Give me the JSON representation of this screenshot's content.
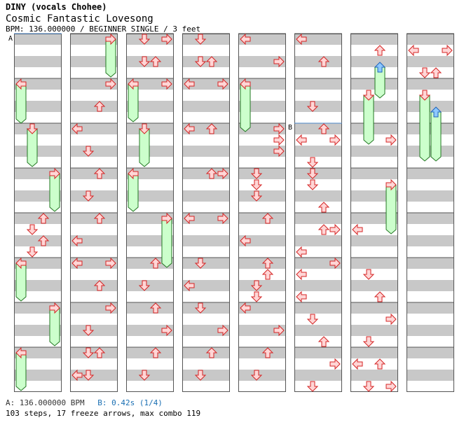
{
  "song": {
    "artist": "DINY (vocals Chohee)",
    "title": "Cosmic Fantastic Lovesong",
    "meta": "BPM: 136.000000 / BEGINNER SINGLE / 3 feet"
  },
  "markers": {
    "a_label": "A",
    "b_label": "B"
  },
  "footer": {
    "bpm_a": "A: 136.000000 BPM",
    "bpm_b": "B: 0.42s (1/4)",
    "stats": "103 steps, 17 freeze arrows, max combo 119"
  },
  "colors": {
    "stripe": "#c8c8c8",
    "border": "#555555",
    "arrow_fill": "#ffd6d6",
    "arrow_stroke": "#d42424",
    "freeze_fill": "#ccffcc",
    "freeze_stroke": "#227722",
    "blue_arrow_fill": "#8ec8ff",
    "blue_arrow_stroke": "#1f63b8",
    "marker_line": "#4a86c8"
  },
  "chart_data": {
    "type": "stepchart",
    "columns": 8,
    "measures_per_column": 8,
    "lanes": [
      "left",
      "down",
      "up",
      "right"
    ],
    "notes": [
      [
        1,
        1,
        3
      ],
      [
        1,
        1,
        10
      ],
      [
        1,
        1,
        12
      ],
      [
        1,
        1,
        19
      ],
      [
        1,
        1,
        21
      ],
      [
        1,
        1,
        29
      ],
      [
        2,
        0,
        3
      ],
      [
        2,
        1,
        3
      ],
      [
        2,
        2,
        6
      ],
      [
        2,
        3,
        8
      ],
      [
        2,
        0,
        16
      ],
      [
        2,
        3,
        17
      ],
      [
        2,
        1,
        23
      ],
      [
        2,
        3,
        26
      ],
      [
        2,
        0,
        29
      ],
      [
        2,
        1,
        30
      ],
      [
        3,
        2,
        0
      ],
      [
        3,
        0,
        6
      ],
      [
        3,
        1,
        9
      ],
      [
        3,
        2,
        14
      ],
      [
        3,
        1,
        17
      ],
      [
        3,
        2,
        20
      ],
      [
        3,
        0,
        23
      ],
      [
        3,
        3,
        26
      ],
      [
        3,
        0,
        30
      ],
      [
        3,
        1,
        31
      ],
      [
        4,
        0,
        2
      ],
      [
        4,
        1,
        6
      ],
      [
        4,
        3,
        13
      ],
      [
        4,
        1,
        18
      ],
      [
        4,
        0,
        20
      ],
      [
        4,
        1,
        22
      ],
      [
        4,
        1,
        25
      ],
      [
        4,
        2,
        27
      ],
      [
        4,
        1,
        29
      ],
      [
        5,
        2,
        0
      ],
      [
        5,
        3,
        4
      ],
      [
        5,
        0,
        6
      ],
      [
        5,
        3,
        9
      ],
      [
        5,
        3,
        11
      ],
      [
        5,
        3,
        13
      ],
      [
        5,
        2,
        15
      ],
      [
        5,
        1,
        16
      ],
      [
        5,
        1,
        18
      ],
      [
        5,
        3,
        21
      ],
      [
        5,
        0,
        23
      ],
      [
        5,
        3,
        29
      ],
      [
        5,
        2,
        31
      ],
      [
        6,
        0,
        0
      ],
      [
        6,
        1,
        5
      ],
      [
        6,
        2,
        9
      ],
      [
        6,
        2,
        15
      ],
      [
        6,
        1,
        18
      ],
      [
        6,
        2,
        21
      ],
      [
        6,
        1,
        23
      ],
      [
        6,
        3,
        25
      ],
      [
        6,
        0,
        28
      ],
      [
        6,
        1,
        29
      ],
      [
        6,
        0,
        33
      ],
      [
        6,
        1,
        35
      ],
      [
        7,
        0,
        1
      ],
      [
        7,
        1,
        5
      ],
      [
        7,
        3,
        7
      ],
      [
        7,
        1,
        9
      ],
      [
        7,
        2,
        11
      ],
      [
        7,
        2,
        13
      ],
      [
        7,
        1,
        14
      ],
      [
        7,
        3,
        18
      ],
      [
        7,
        2,
        21
      ],
      [
        7,
        3,
        27
      ],
      [
        7,
        1,
        29
      ],
      [
        7,
        1,
        34
      ],
      [
        7,
        2,
        37
      ],
      [
        7,
        1,
        39
      ]
    ],
    "notes_b": [
      [
        4,
        2,
        8
      ],
      [
        4,
        1,
        6
      ],
      [
        4,
        3,
        9
      ],
      [
        5,
        1,
        5
      ],
      [
        5,
        3,
        8
      ],
      [
        5,
        0,
        9
      ],
      [
        5,
        1,
        12
      ],
      [
        5,
        3,
        16
      ],
      [
        5,
        2,
        28
      ],
      [
        5,
        1,
        31
      ],
      [
        6,
        2,
        4
      ],
      [
        6,
        1,
        4
      ],
      [
        6,
        3,
        9
      ],
      [
        6,
        2,
        12
      ],
      [
        6,
        0,
        16
      ],
      [
        6,
        1,
        16
      ],
      [
        6,
        3,
        21
      ],
      [
        6,
        1,
        24
      ],
      [
        6,
        3,
        25
      ],
      [
        6,
        2,
        28
      ],
      [
        0,
        1,
        17
      ],
      [
        0,
        2,
        19
      ],
      [
        0,
        1,
        21
      ],
      [
        0,
        1,
        23
      ],
      [
        0,
        1,
        33
      ],
      [
        0,
        3,
        40
      ],
      [
        0,
        1,
        41
      ],
      [
        0,
        0,
        44
      ],
      [
        0,
        1,
        45
      ],
      [
        0,
        2,
        56
      ],
      [
        0,
        3,
        58
      ],
      [
        0,
        1,
        60
      ],
      [
        0,
        0,
        61
      ],
      [
        0,
        1,
        63
      ]
    ]
  }
}
